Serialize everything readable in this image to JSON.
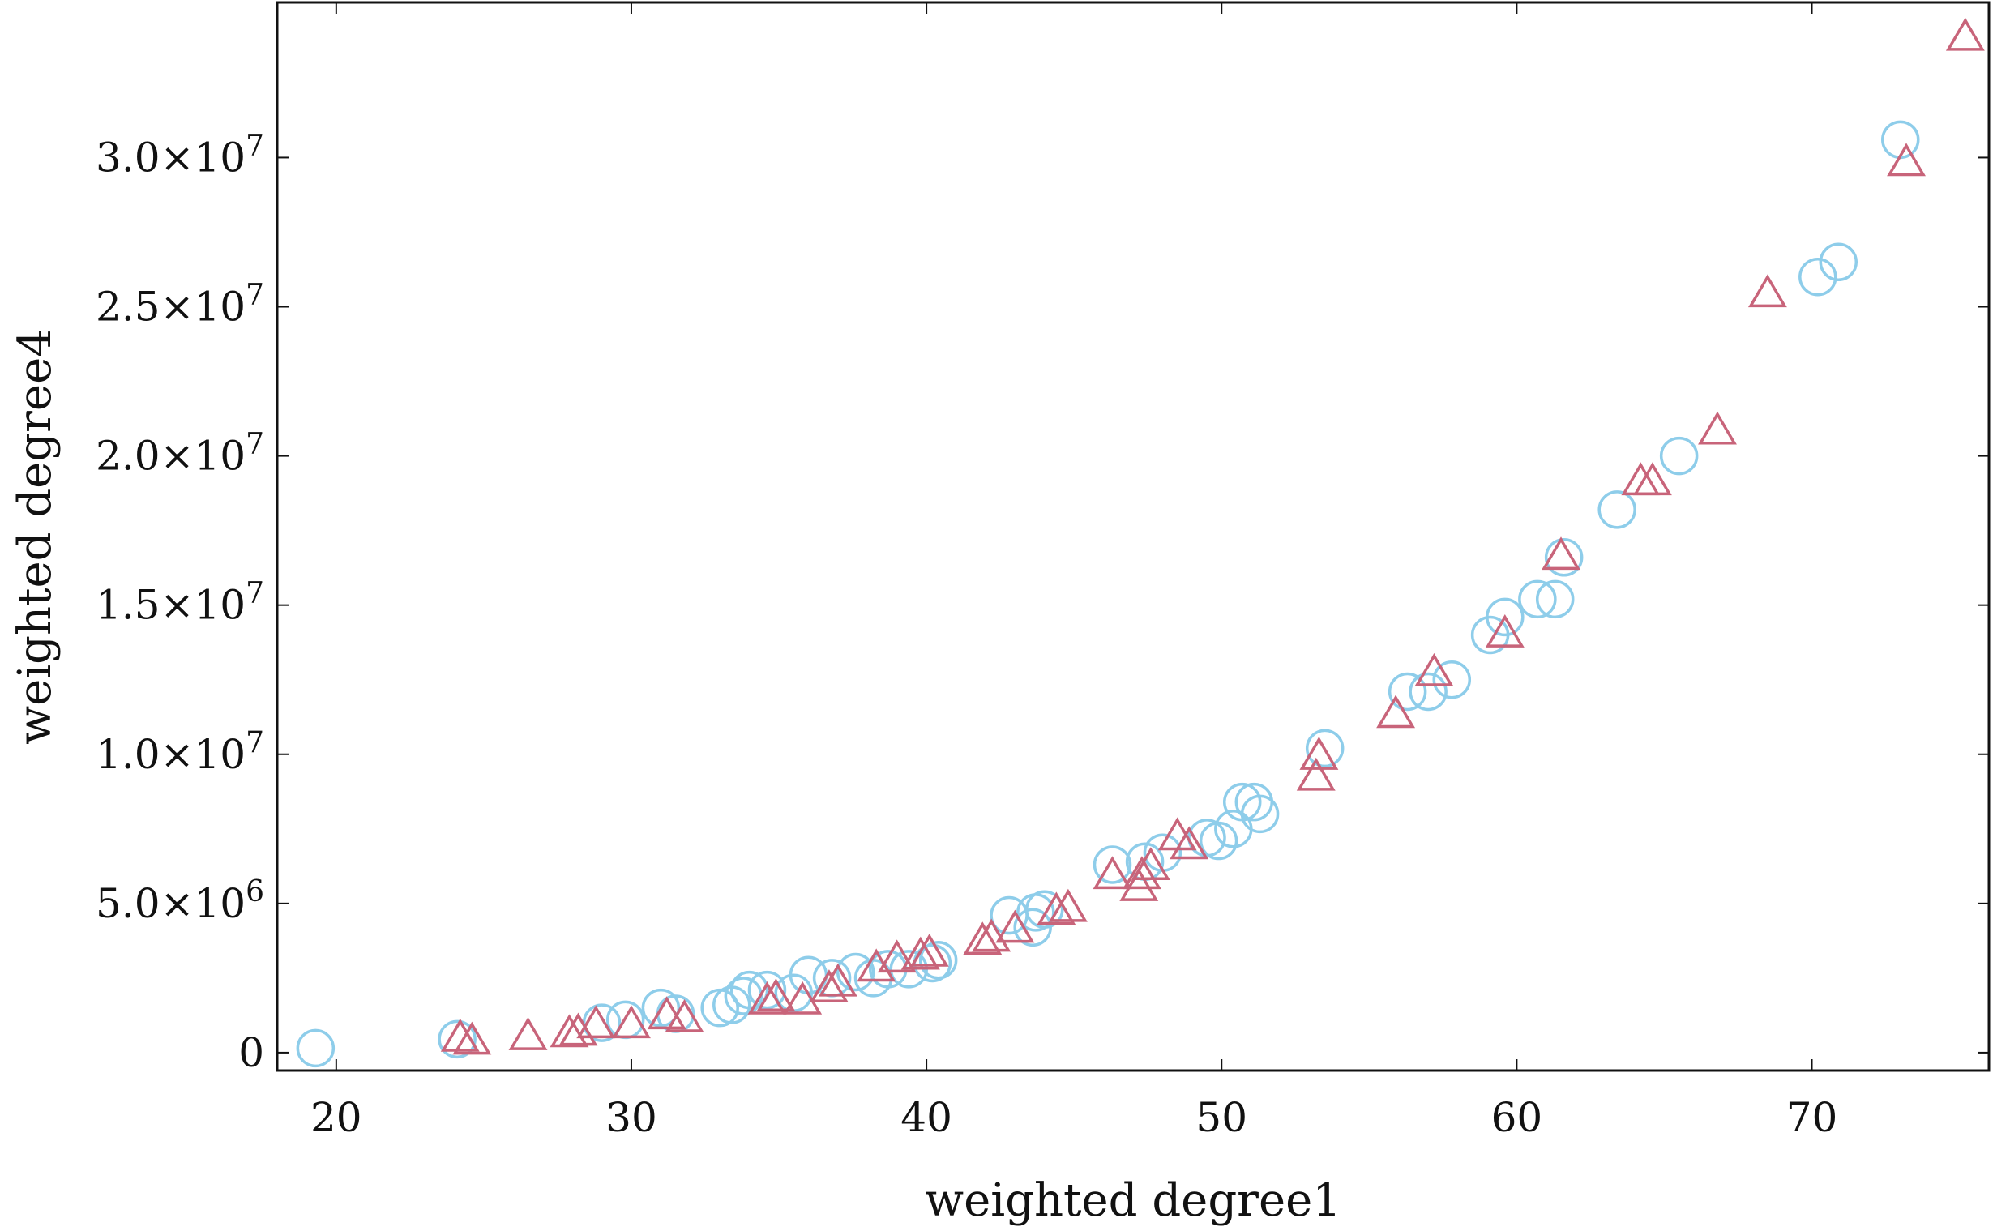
{
  "chart_data": {
    "type": "scatter",
    "xlabel": "weighted degree1",
    "ylabel": "weighted degree4",
    "xlim": [
      18,
      76
    ],
    "ylim": [
      -600000,
      35200000
    ],
    "grid": false,
    "x_ticks": [
      {
        "value": 20,
        "label": "20"
      },
      {
        "value": 30,
        "label": "30"
      },
      {
        "value": 40,
        "label": "40"
      },
      {
        "value": 50,
        "label": "50"
      },
      {
        "value": 60,
        "label": "60"
      },
      {
        "value": 70,
        "label": "70"
      }
    ],
    "y_ticks": [
      {
        "value": 0,
        "mantissa": "0",
        "exp": ""
      },
      {
        "value": 5000000,
        "mantissa": "5.0×10",
        "exp": "6"
      },
      {
        "value": 10000000,
        "mantissa": "1.0×10",
        "exp": "7"
      },
      {
        "value": 15000000,
        "mantissa": "1.5×10",
        "exp": "7"
      },
      {
        "value": 20000000,
        "mantissa": "2.0×10",
        "exp": "7"
      },
      {
        "value": 25000000,
        "mantissa": "2.5×10",
        "exp": "7"
      },
      {
        "value": 30000000,
        "mantissa": "3.0×10",
        "exp": "7"
      }
    ],
    "series": [
      {
        "marker": "circle",
        "color": "#8ecdea",
        "points": [
          [
            19.3,
            150000
          ],
          [
            24.1,
            450000
          ],
          [
            29.0,
            1000000
          ],
          [
            29.8,
            1100000
          ],
          [
            31.0,
            1500000
          ],
          [
            31.5,
            1300000
          ],
          [
            33.0,
            1500000
          ],
          [
            33.4,
            1600000
          ],
          [
            33.8,
            1900000
          ],
          [
            34.0,
            2100000
          ],
          [
            34.6,
            2100000
          ],
          [
            35.5,
            2000000
          ],
          [
            36.0,
            2600000
          ],
          [
            36.8,
            2500000
          ],
          [
            37.6,
            2700000
          ],
          [
            38.2,
            2500000
          ],
          [
            38.7,
            2800000
          ],
          [
            39.4,
            2800000
          ],
          [
            40.2,
            3000000
          ],
          [
            40.4,
            3100000
          ],
          [
            42.8,
            4600000
          ],
          [
            43.6,
            4200000
          ],
          [
            43.7,
            4700000
          ],
          [
            44.0,
            4800000
          ],
          [
            46.3,
            6300000
          ],
          [
            47.4,
            6400000
          ],
          [
            48.0,
            6700000
          ],
          [
            49.5,
            7200000
          ],
          [
            49.9,
            7100000
          ],
          [
            50.4,
            7500000
          ],
          [
            50.7,
            8400000
          ],
          [
            51.1,
            8400000
          ],
          [
            51.3,
            8000000
          ],
          [
            53.5,
            10200000
          ],
          [
            56.3,
            12100000
          ],
          [
            57.0,
            12100000
          ],
          [
            57.8,
            12500000
          ],
          [
            59.1,
            14000000
          ],
          [
            59.6,
            14600000
          ],
          [
            60.7,
            15200000
          ],
          [
            61.3,
            15200000
          ],
          [
            61.6,
            16600000
          ],
          [
            63.4,
            18200000
          ],
          [
            65.5,
            20000000
          ],
          [
            70.2,
            26000000
          ],
          [
            70.9,
            26500000
          ],
          [
            73.0,
            30600000
          ]
        ]
      },
      {
        "marker": "triangle",
        "color": "#c8647a",
        "points": [
          [
            24.2,
            450000
          ],
          [
            24.6,
            350000
          ],
          [
            26.5,
            500000
          ],
          [
            27.9,
            600000
          ],
          [
            28.2,
            650000
          ],
          [
            28.8,
            900000
          ],
          [
            30.0,
            900000
          ],
          [
            31.2,
            1200000
          ],
          [
            31.8,
            1100000
          ],
          [
            34.6,
            1700000
          ],
          [
            34.9,
            1800000
          ],
          [
            35.8,
            1700000
          ],
          [
            36.7,
            2100000
          ],
          [
            37.0,
            2300000
          ],
          [
            38.3,
            2800000
          ],
          [
            39.0,
            3100000
          ],
          [
            39.8,
            3200000
          ],
          [
            40.1,
            3300000
          ],
          [
            41.9,
            3700000
          ],
          [
            42.2,
            3800000
          ],
          [
            43.0,
            4100000
          ],
          [
            44.4,
            4700000
          ],
          [
            44.8,
            4800000
          ],
          [
            46.3,
            5900000
          ],
          [
            47.2,
            5500000
          ],
          [
            47.3,
            5900000
          ],
          [
            47.6,
            6200000
          ],
          [
            48.5,
            7200000
          ],
          [
            48.9,
            6900000
          ],
          [
            53.2,
            9200000
          ],
          [
            53.3,
            9900000
          ],
          [
            55.9,
            11300000
          ],
          [
            57.2,
            12700000
          ],
          [
            59.6,
            14000000
          ],
          [
            61.5,
            16600000
          ],
          [
            64.2,
            19100000
          ],
          [
            64.6,
            19100000
          ],
          [
            66.8,
            20800000
          ],
          [
            68.5,
            25400000
          ],
          [
            73.2,
            29800000
          ],
          [
            75.2,
            34000000
          ]
        ]
      }
    ]
  }
}
